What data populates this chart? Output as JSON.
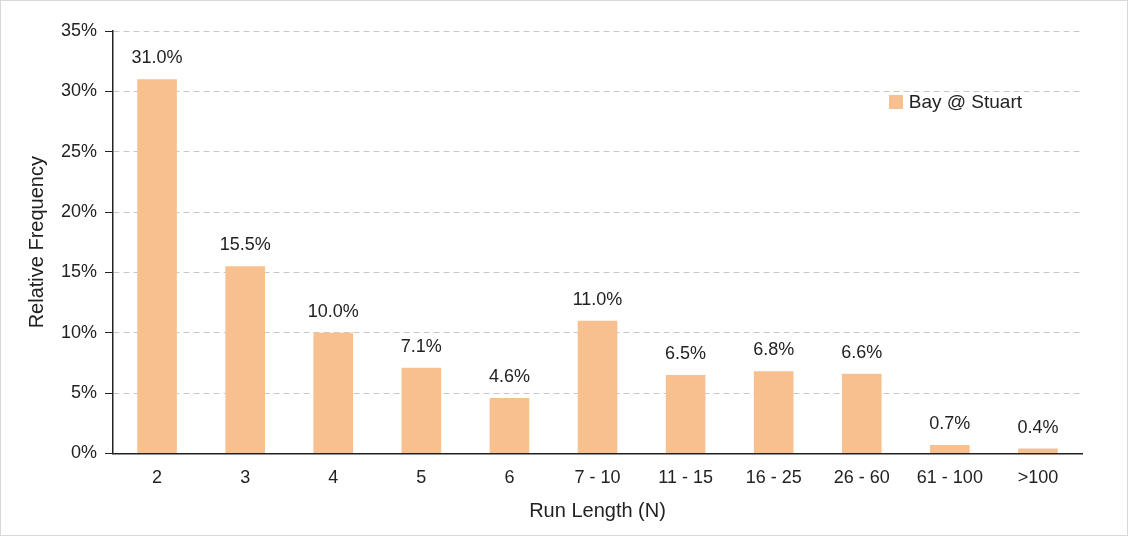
{
  "chart_data": {
    "type": "bar",
    "xlabel": "Run Length (N)",
    "ylabel": "Relative Frequency",
    "categories": [
      "2",
      "3",
      "4",
      "5",
      "6",
      "7 - 10",
      "11 - 15",
      "16 - 25",
      "26 - 60",
      "61 - 100",
      ">100"
    ],
    "series": [
      {
        "name": "Bay @ Stuart",
        "color": "#f9c08f",
        "values": [
          31.0,
          15.5,
          10.0,
          7.1,
          4.6,
          11.0,
          6.5,
          6.8,
          6.6,
          0.7,
          0.4
        ],
        "value_labels": [
          "31.0%",
          "15.5%",
          "10.0%",
          "7.1%",
          "4.6%",
          "11.0%",
          "6.5%",
          "6.8%",
          "6.6%",
          "0.7%",
          "0.4%"
        ]
      }
    ],
    "ylim": [
      0,
      35
    ],
    "yticks": [
      {
        "value": 0,
        "label": "0%"
      },
      {
        "value": 5,
        "label": "5%"
      },
      {
        "value": 10,
        "label": "10%"
      },
      {
        "value": 15,
        "label": "15%"
      },
      {
        "value": 20,
        "label": "20%"
      },
      {
        "value": 25,
        "label": "25%"
      },
      {
        "value": 30,
        "label": "30%"
      },
      {
        "value": 35,
        "label": "35%"
      }
    ],
    "grid": "y",
    "legend": "top right"
  }
}
